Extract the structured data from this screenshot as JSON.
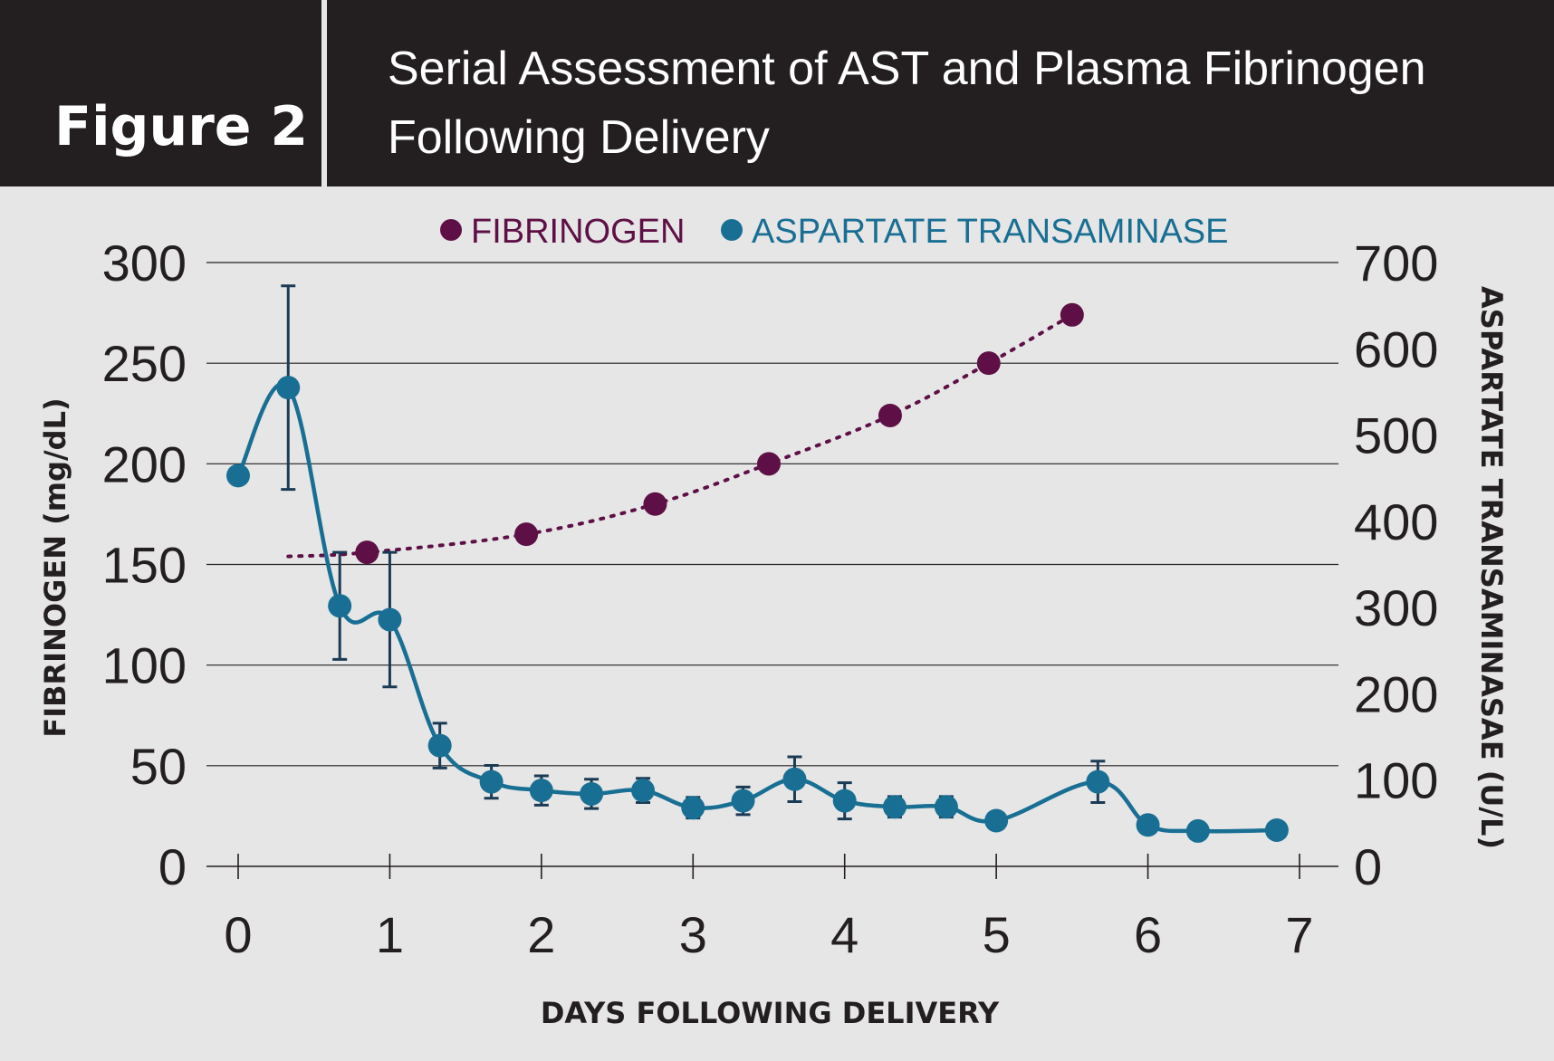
{
  "header": {
    "figure_label": "Figure 2",
    "title_line1": "Serial Assessment of AST and Plasma Fibrinogen",
    "title_line2": "Following Delivery"
  },
  "colors": {
    "header_bg": "#231f20",
    "panel_bg": "#e6e6e6",
    "fibrinogen": "#5e1046",
    "ast": "#196f93",
    "grid": "#231f20"
  },
  "chart_data": {
    "type": "line",
    "xlabel": "DAYS FOLLOWING DELIVERY",
    "ylabel_left": "FIBRINOGEN (mg/dL)",
    "ylabel_right": "ASPARTATE TRANSAMINASAE (U/L)",
    "xlim": [
      0,
      7
    ],
    "ylim_left": [
      0,
      300
    ],
    "ylim_right": [
      0,
      700
    ],
    "x_ticks": [
      "0",
      "1",
      "2",
      "3",
      "4",
      "5",
      "6",
      "7"
    ],
    "y_left_ticks": [
      "0",
      "50",
      "100",
      "150",
      "200",
      "250",
      "300"
    ],
    "y_right_ticks": [
      "0",
      "100",
      "200",
      "300",
      "400",
      "500",
      "600",
      "700"
    ],
    "grid": "horizontal",
    "legend_position": "top-center",
    "series": [
      {
        "name": "FIBRINOGEN",
        "axis": "left",
        "style": "dotted",
        "color": "#5e1046",
        "x": [
          0.85,
          1.9,
          2.75,
          3.5,
          4.3,
          4.95,
          5.5
        ],
        "y": [
          156,
          165,
          180,
          200,
          224,
          250,
          274
        ],
        "trend_start": {
          "x": 0.33,
          "y": 154
        }
      },
      {
        "name": "ASPARTATE TRANSAMINASE",
        "axis": "right",
        "style": "solid",
        "color": "#196f93",
        "x": [
          0,
          0.33,
          0.67,
          1.0,
          1.33,
          1.67,
          2.0,
          2.33,
          2.67,
          3.0,
          3.33,
          3.67,
          4.0,
          4.33,
          4.67,
          5.0,
          5.67,
          6.0,
          6.33,
          6.85
        ],
        "y": [
          453,
          555,
          302,
          286,
          140,
          98,
          88,
          84,
          88,
          68,
          76,
          101,
          76,
          69,
          69,
          53,
          98,
          48,
          41,
          42
        ],
        "error": [
          null,
          118,
          62,
          78,
          26,
          19,
          17,
          17,
          14,
          12,
          16,
          26,
          21,
          12,
          12,
          null,
          24,
          null,
          null,
          null
        ]
      }
    ]
  }
}
